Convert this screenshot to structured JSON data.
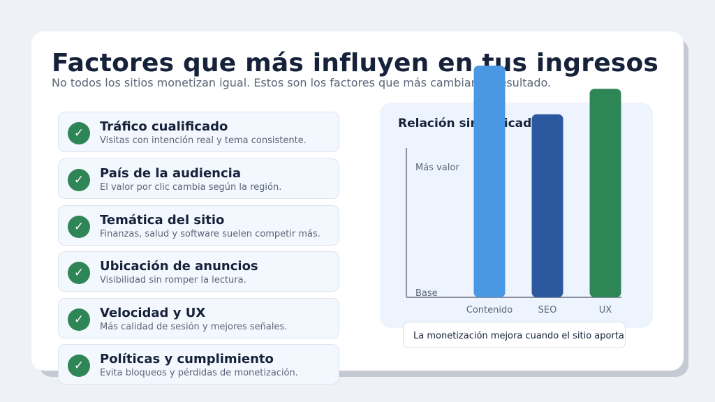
{
  "header": {
    "title": "Factores que más influyen en tus ingresos",
    "subtitle": "No todos los sitios monetizan igual. Estos son los factores que más cambian el resultado."
  },
  "factors": [
    {
      "title": "Tráfico cualificado",
      "desc": "Visitas con intención real y tema consistente."
    },
    {
      "title": "País de la audiencia",
      "desc": "El valor por clic cambia según la región."
    },
    {
      "title": "Temática del sitio",
      "desc": "Finanzas, salud y software suelen competir más."
    },
    {
      "title": "Ubicación de anuncios",
      "desc": "Visibilidad sin romper la lectura."
    },
    {
      "title": "Velocidad y UX",
      "desc": "Más calidad de sesión y mejores señales."
    },
    {
      "title": "Políticas y cumplimiento",
      "desc": "Evita bloqueos y pérdidas de monetización."
    }
  ],
  "icons": {
    "check": "check-icon"
  },
  "colors": {
    "title": "#16213a",
    "check": "#2e8555",
    "axis": "#8a90a0"
  },
  "chart_data": {
    "type": "bar",
    "title": "Relación simplificada",
    "categories": [
      "Contenido",
      "SEO",
      "UX"
    ],
    "values": [
      1.0,
      0.79,
      0.9
    ],
    "colors": [
      "#4a97e3",
      "#2c58a0",
      "#2e8555"
    ],
    "y_tick_labels": {
      "top": "Más valor",
      "bottom": "Base"
    },
    "ylim": [
      0,
      1
    ],
    "grid": false
  },
  "note": "La monetización mejora cuando el sitio aporta confianza, contenido útil y buena experiencia."
}
